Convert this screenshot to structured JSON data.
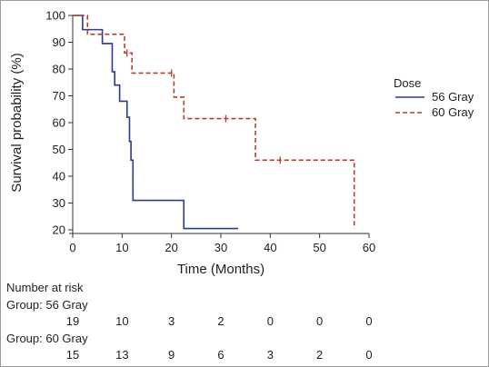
{
  "chart_data": {
    "type": "line",
    "subtype": "kaplan-meier-step",
    "xlabel": "Time (Months)",
    "ylabel": "Survival probability (%)",
    "xlim": [
      0,
      60
    ],
    "ylim": [
      20,
      100
    ],
    "xticks": [
      0,
      10,
      20,
      30,
      40,
      50,
      60
    ],
    "yticks": [
      20,
      30,
      40,
      50,
      60,
      70,
      80,
      90,
      100
    ],
    "grid": false,
    "legend": {
      "title": "Dose",
      "placement": "right"
    },
    "series": [
      {
        "name": "56 Gray",
        "color": "#2b3b8f",
        "dash": "solid",
        "steps": [
          [
            0,
            100
          ],
          [
            2,
            94.7
          ],
          [
            5,
            94.7
          ],
          [
            6,
            89.5
          ],
          [
            7,
            89.5
          ],
          [
            8,
            79
          ],
          [
            8.5,
            74
          ],
          [
            9,
            74
          ],
          [
            9.5,
            68
          ],
          [
            10,
            68
          ],
          [
            11,
            62
          ],
          [
            11.5,
            53
          ],
          [
            11.8,
            46
          ],
          [
            12.2,
            31
          ],
          [
            22.5,
            31
          ],
          [
            22.5,
            20.5
          ],
          [
            33.5,
            20.5
          ]
        ],
        "censor_marks": []
      },
      {
        "name": "60 Gray",
        "color": "#b5402a",
        "dash": "dashed",
        "steps": [
          [
            0,
            100
          ],
          [
            3,
            93
          ],
          [
            10,
            93
          ],
          [
            10.5,
            86
          ],
          [
            11,
            86
          ],
          [
            12,
            78.5
          ],
          [
            20,
            78.5
          ],
          [
            20.5,
            69.5
          ],
          [
            22,
            69.5
          ],
          [
            22.5,
            61.5
          ],
          [
            37,
            61.5
          ],
          [
            37,
            46
          ],
          [
            57,
            46
          ],
          [
            57,
            20.5
          ]
        ],
        "censor_marks": [
          [
            11,
            86
          ],
          [
            20,
            78.5
          ],
          [
            31,
            61.5
          ],
          [
            42,
            46
          ]
        ]
      }
    ],
    "risk_table": {
      "title": "Number at risk",
      "groups": [
        {
          "label": "Group: 56 Gray",
          "values": [
            19,
            10,
            3,
            2,
            0,
            0,
            0
          ]
        },
        {
          "label": "Group: 60 Gray",
          "values": [
            15,
            13,
            9,
            6,
            3,
            2,
            0
          ]
        }
      ]
    }
  }
}
